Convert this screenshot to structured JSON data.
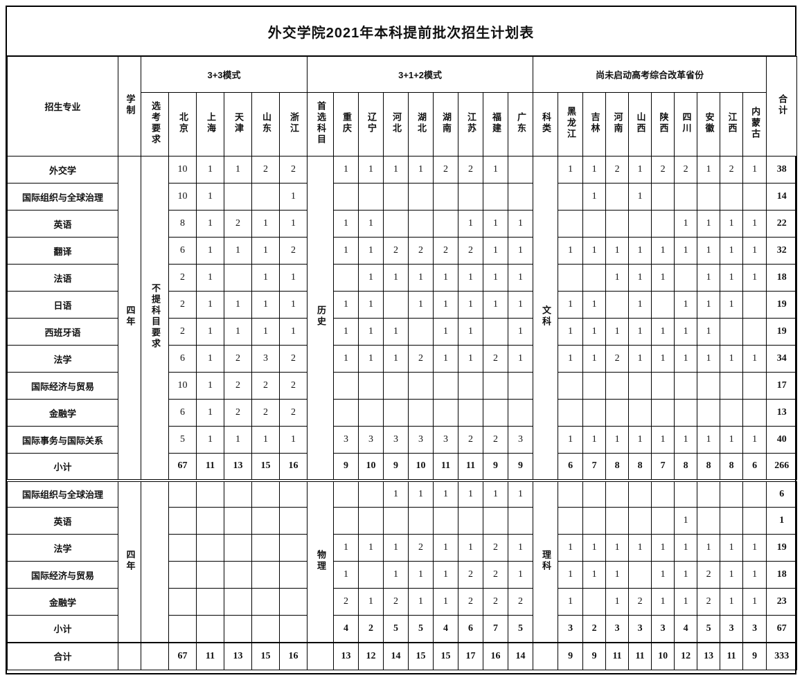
{
  "title": "外交学院2021年本科提前批次招生计划表",
  "header": {
    "major": "招生专业",
    "duration": "学制",
    "total": "合计",
    "groups": [
      {
        "label": "3+3模式",
        "lead": "选考要求",
        "provinces": [
          "北京",
          "上海",
          "天津",
          "山东",
          "浙江"
        ]
      },
      {
        "label": "3+1+2模式",
        "lead": "首选科目",
        "provinces": [
          "重庆",
          "辽宁",
          "河北",
          "湖北",
          "湖南",
          "江苏",
          "福建",
          "广东"
        ]
      },
      {
        "label": "尚未启动高考综合改革省份",
        "lead": "科类",
        "provinces": [
          "黑龙江",
          "吉林",
          "河南",
          "山西",
          "陕西",
          "四川",
          "安徽",
          "江西",
          "内蒙古"
        ]
      }
    ]
  },
  "sections": [
    {
      "duration": "四年",
      "leads": [
        "不提科目要求",
        "历史",
        "文科"
      ],
      "rows": [
        {
          "major": "外交学",
          "g1": [
            "10",
            "1",
            "1",
            "2",
            "2"
          ],
          "g2": [
            "1",
            "1",
            "1",
            "1",
            "2",
            "2",
            "1",
            ""
          ],
          "g3": [
            "1",
            "1",
            "2",
            "1",
            "2",
            "2",
            "1",
            "2",
            "1"
          ],
          "total": "38",
          "subtotal": false
        },
        {
          "major": "国际组织与全球治理",
          "g1": [
            "10",
            "1",
            "",
            "",
            "1"
          ],
          "g2": [
            "",
            "",
            "",
            "",
            "",
            "",
            "",
            ""
          ],
          "g3": [
            "",
            "1",
            "",
            "1",
            "",
            "",
            "",
            "",
            ""
          ],
          "total": "14",
          "subtotal": false
        },
        {
          "major": "英语",
          "g1": [
            "8",
            "1",
            "2",
            "1",
            "1"
          ],
          "g2": [
            "1",
            "1",
            "",
            "",
            "",
            "1",
            "1",
            "1"
          ],
          "g3": [
            "",
            "",
            "",
            "",
            "",
            "1",
            "1",
            "1",
            "1"
          ],
          "total": "22",
          "subtotal": false
        },
        {
          "major": "翻译",
          "g1": [
            "6",
            "1",
            "1",
            "1",
            "2"
          ],
          "g2": [
            "1",
            "1",
            "2",
            "2",
            "2",
            "2",
            "1",
            "1"
          ],
          "g3": [
            "1",
            "1",
            "1",
            "1",
            "1",
            "1",
            "1",
            "1",
            "1"
          ],
          "total": "32",
          "subtotal": false
        },
        {
          "major": "法语",
          "g1": [
            "2",
            "1",
            "",
            "1",
            "1"
          ],
          "g2": [
            "",
            "1",
            "1",
            "1",
            "1",
            "1",
            "1",
            "1"
          ],
          "g3": [
            "",
            "",
            "1",
            "1",
            "1",
            "",
            "1",
            "1",
            "1"
          ],
          "total": "18",
          "subtotal": false
        },
        {
          "major": "日语",
          "g1": [
            "2",
            "1",
            "1",
            "1",
            "1"
          ],
          "g2": [
            "1",
            "1",
            "",
            "1",
            "1",
            "1",
            "1",
            "1"
          ],
          "g3": [
            "1",
            "1",
            "",
            "1",
            "",
            "1",
            "1",
            "1",
            ""
          ],
          "total": "19",
          "subtotal": false
        },
        {
          "major": "西班牙语",
          "g1": [
            "2",
            "1",
            "1",
            "1",
            "1"
          ],
          "g2": [
            "1",
            "1",
            "1",
            "",
            "1",
            "1",
            "",
            "1"
          ],
          "g3": [
            "1",
            "1",
            "1",
            "1",
            "1",
            "1",
            "1",
            "",
            ""
          ],
          "total": "19",
          "subtotal": false
        },
        {
          "major": "法学",
          "g1": [
            "6",
            "1",
            "2",
            "3",
            "2"
          ],
          "g2": [
            "1",
            "1",
            "1",
            "2",
            "1",
            "1",
            "2",
            "1"
          ],
          "g3": [
            "1",
            "1",
            "2",
            "1",
            "1",
            "1",
            "1",
            "1",
            "1"
          ],
          "total": "34",
          "subtotal": false
        },
        {
          "major": "国际经济与贸易",
          "g1": [
            "10",
            "1",
            "2",
            "2",
            "2"
          ],
          "g2": [
            "",
            "",
            "",
            "",
            "",
            "",
            "",
            ""
          ],
          "g3": [
            "",
            "",
            "",
            "",
            "",
            "",
            "",
            "",
            ""
          ],
          "total": "17",
          "subtotal": false
        },
        {
          "major": "金融学",
          "g1": [
            "6",
            "1",
            "2",
            "2",
            "2"
          ],
          "g2": [
            "",
            "",
            "",
            "",
            "",
            "",
            "",
            ""
          ],
          "g3": [
            "",
            "",
            "",
            "",
            "",
            "",
            "",
            "",
            ""
          ],
          "total": "13",
          "subtotal": false
        },
        {
          "major": "国际事务与国际关系",
          "g1": [
            "5",
            "1",
            "1",
            "1",
            "1"
          ],
          "g2": [
            "3",
            "3",
            "3",
            "3",
            "3",
            "2",
            "2",
            "3"
          ],
          "g3": [
            "1",
            "1",
            "1",
            "1",
            "1",
            "1",
            "1",
            "1",
            "1"
          ],
          "total": "40",
          "subtotal": false
        },
        {
          "major": "小计",
          "g1": [
            "67",
            "11",
            "13",
            "15",
            "16"
          ],
          "g2": [
            "9",
            "10",
            "9",
            "10",
            "11",
            "11",
            "9",
            "9"
          ],
          "g3": [
            "6",
            "7",
            "8",
            "8",
            "7",
            "8",
            "8",
            "8",
            "6"
          ],
          "total": "266",
          "subtotal": true
        }
      ]
    },
    {
      "duration": "四年",
      "leads": [
        "",
        "物理",
        "理科"
      ],
      "rows": [
        {
          "major": "国际组织与全球治理",
          "g1": [
            "",
            "",
            "",
            "",
            ""
          ],
          "g2": [
            "",
            "",
            "1",
            "1",
            "1",
            "1",
            "1",
            "1"
          ],
          "g3": [
            "",
            "",
            "",
            "",
            "",
            "",
            "",
            "",
            ""
          ],
          "total": "6",
          "subtotal": false
        },
        {
          "major": "英语",
          "g1": [
            "",
            "",
            "",
            "",
            ""
          ],
          "g2": [
            "",
            "",
            "",
            "",
            "",
            "",
            "",
            ""
          ],
          "g3": [
            "",
            "",
            "",
            "",
            "",
            "1",
            "",
            "",
            ""
          ],
          "total": "1",
          "subtotal": false
        },
        {
          "major": "法学",
          "g1": [
            "",
            "",
            "",
            "",
            ""
          ],
          "g2": [
            "1",
            "1",
            "1",
            "2",
            "1",
            "1",
            "2",
            "1"
          ],
          "g3": [
            "1",
            "1",
            "1",
            "1",
            "1",
            "1",
            "1",
            "1",
            "1"
          ],
          "total": "19",
          "subtotal": false
        },
        {
          "major": "国际经济与贸易",
          "g1": [
            "",
            "",
            "",
            "",
            ""
          ],
          "g2": [
            "1",
            "",
            "1",
            "1",
            "1",
            "2",
            "2",
            "1"
          ],
          "g3": [
            "1",
            "1",
            "1",
            "",
            "1",
            "1",
            "2",
            "1",
            "1"
          ],
          "total": "18",
          "subtotal": false
        },
        {
          "major": "金融学",
          "g1": [
            "",
            "",
            "",
            "",
            ""
          ],
          "g2": [
            "2",
            "1",
            "2",
            "1",
            "1",
            "2",
            "2",
            "2"
          ],
          "g3": [
            "1",
            "",
            "1",
            "2",
            "1",
            "1",
            "2",
            "1",
            "1"
          ],
          "total": "23",
          "subtotal": false
        },
        {
          "major": "小计",
          "g1": [
            "",
            "",
            "",
            "",
            ""
          ],
          "g2": [
            "4",
            "2",
            "5",
            "5",
            "4",
            "6",
            "7",
            "5"
          ],
          "g3": [
            "3",
            "2",
            "3",
            "3",
            "3",
            "4",
            "5",
            "3",
            "3"
          ],
          "total": "67",
          "subtotal": true
        }
      ]
    }
  ],
  "grand_total": {
    "major": "合计",
    "g1": [
      "67",
      "11",
      "13",
      "15",
      "16"
    ],
    "g2": [
      "13",
      "12",
      "14",
      "15",
      "15",
      "17",
      "16",
      "14"
    ],
    "g3": [
      "9",
      "9",
      "11",
      "11",
      "10",
      "12",
      "13",
      "11",
      "9"
    ],
    "total": "333"
  }
}
